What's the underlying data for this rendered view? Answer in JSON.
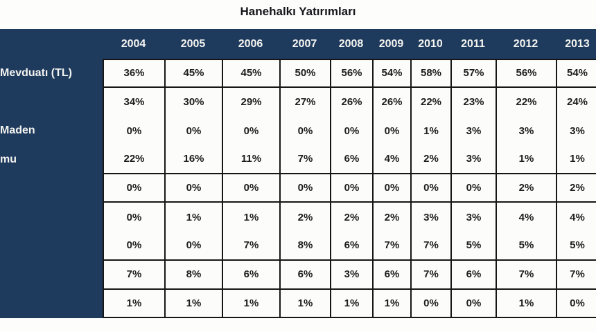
{
  "title": "Hanehalkı Yatırımları",
  "table": {
    "years": [
      "2004",
      "2005",
      "2006",
      "2007",
      "2008",
      "2009",
      "2010",
      "2011",
      "2012",
      "2013"
    ],
    "group_end_rows": [
      0,
      3,
      4,
      6,
      7,
      8
    ],
    "rows": [
      {
        "label": "Mevduatı (TL)",
        "values": [
          "36%",
          "45%",
          "45%",
          "50%",
          "56%",
          "54%",
          "58%",
          "57%",
          "56%",
          "54%"
        ]
      },
      {
        "label": "",
        "values": [
          "34%",
          "30%",
          "29%",
          "27%",
          "26%",
          "26%",
          "22%",
          "23%",
          "22%",
          "24%"
        ]
      },
      {
        "label": "Maden",
        "values": [
          "0%",
          "0%",
          "0%",
          "0%",
          "0%",
          "0%",
          "1%",
          "3%",
          "3%",
          "3%"
        ]
      },
      {
        "label": "mu",
        "values": [
          "22%",
          "16%",
          "11%",
          "7%",
          "6%",
          "4%",
          "2%",
          "3%",
          "1%",
          "1%"
        ]
      },
      {
        "label": "",
        "values": [
          "0%",
          "0%",
          "0%",
          "0%",
          "0%",
          "0%",
          "0%",
          "0%",
          "2%",
          "2%"
        ]
      },
      {
        "label": "",
        "values": [
          "0%",
          "1%",
          "1%",
          "2%",
          "2%",
          "2%",
          "3%",
          "3%",
          "4%",
          "4%"
        ]
      },
      {
        "label": "",
        "values": [
          "0%",
          "0%",
          "7%",
          "8%",
          "6%",
          "7%",
          "7%",
          "5%",
          "5%",
          "5%"
        ]
      },
      {
        "label": "",
        "values": [
          "7%",
          "8%",
          "6%",
          "6%",
          "3%",
          "6%",
          "7%",
          "6%",
          "7%",
          "7%"
        ]
      },
      {
        "label": "",
        "values": [
          "1%",
          "1%",
          "1%",
          "1%",
          "1%",
          "1%",
          "0%",
          "0%",
          "1%",
          "0%"
        ]
      }
    ]
  },
  "colors": {
    "page_bg": "#fdfdfc",
    "header_bg": "#1e3a5d",
    "header_text": "#f4f4f0",
    "cell_bg": "#fcfcfa",
    "cell_text": "#1d1d1d",
    "grid_border": "#161616",
    "title_text": "#15151a"
  },
  "chart_data": {
    "type": "table",
    "title": "Hanehalkı Yatırımları",
    "categories": [
      "2004",
      "2005",
      "2006",
      "2007",
      "2008",
      "2009",
      "2010",
      "2011",
      "2012",
      "2013"
    ],
    "unit": "%",
    "series": [
      {
        "name": "Mevduatı (TL)",
        "values": [
          36,
          45,
          45,
          50,
          56,
          54,
          58,
          57,
          56,
          54
        ]
      },
      {
        "name": "",
        "values": [
          34,
          30,
          29,
          27,
          26,
          26,
          22,
          23,
          22,
          24
        ]
      },
      {
        "name": "Maden",
        "values": [
          0,
          0,
          0,
          0,
          0,
          0,
          1,
          3,
          3,
          3
        ]
      },
      {
        "name": "mu",
        "values": [
          22,
          16,
          11,
          7,
          6,
          4,
          2,
          3,
          1,
          1
        ]
      },
      {
        "name": "",
        "values": [
          0,
          0,
          0,
          0,
          0,
          0,
          0,
          0,
          2,
          2
        ]
      },
      {
        "name": "",
        "values": [
          0,
          1,
          1,
          2,
          2,
          2,
          3,
          3,
          4,
          4
        ]
      },
      {
        "name": "",
        "values": [
          0,
          0,
          7,
          8,
          6,
          7,
          7,
          5,
          5,
          5
        ]
      },
      {
        "name": "",
        "values": [
          7,
          8,
          6,
          6,
          3,
          6,
          7,
          6,
          7,
          7
        ]
      },
      {
        "name": "",
        "values": [
          1,
          1,
          1,
          1,
          1,
          1,
          0,
          0,
          1,
          0
        ]
      }
    ]
  }
}
